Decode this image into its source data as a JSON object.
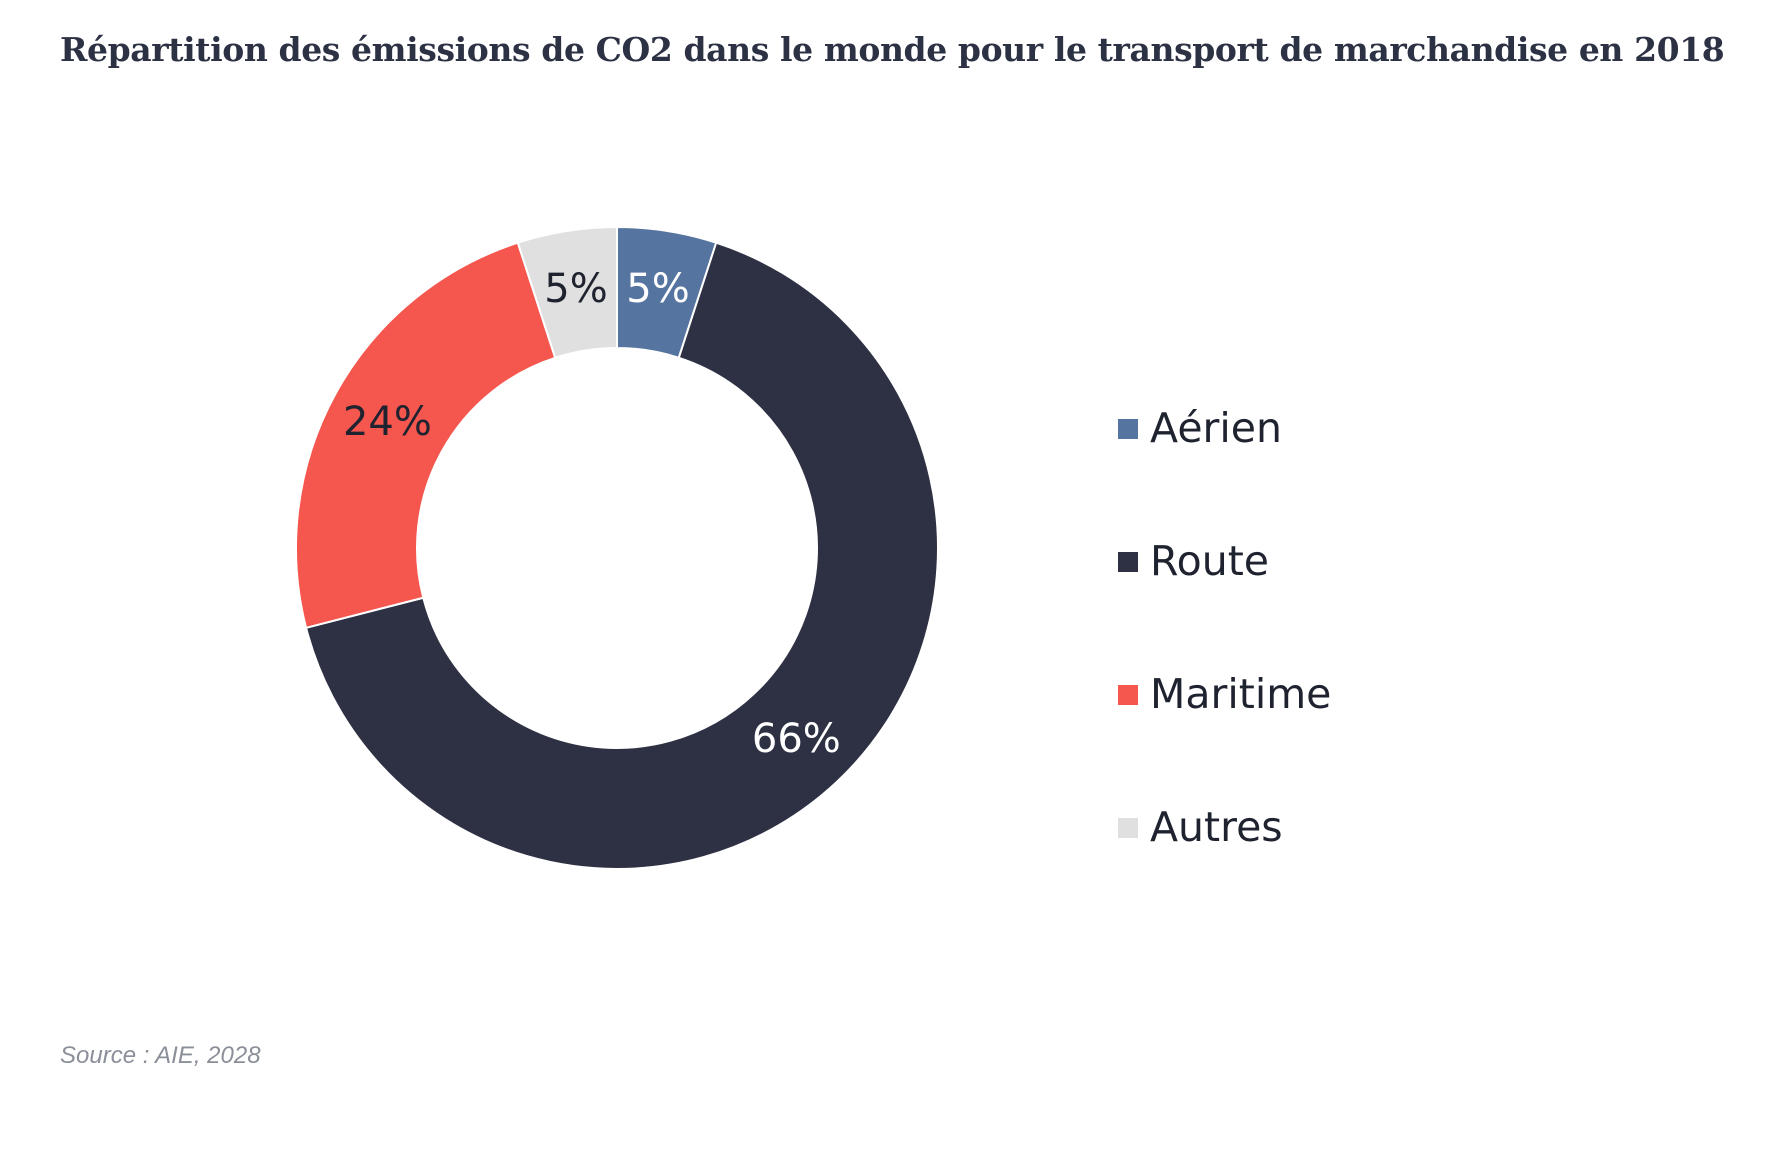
{
  "chart_data": {
    "type": "pie",
    "title": "Répartition des émissions de CO2 dans le monde pour le transport de marchandise en 2018",
    "categories": [
      "Aérien",
      "Route",
      "Maritime",
      "Autres"
    ],
    "values": [
      5,
      66,
      24,
      5
    ],
    "value_labels": [
      "5%",
      "66%",
      "24%",
      "5%"
    ],
    "colors": [
      "#5674a0",
      "#2d3143",
      "#f5564e",
      "#e0e0e0"
    ],
    "label_colors": [
      "#ffffff",
      "#ffffff",
      "#1f2330",
      "#1f2330"
    ],
    "donut": true,
    "legend_position": "right"
  },
  "source": "Source : AIE, 2028"
}
